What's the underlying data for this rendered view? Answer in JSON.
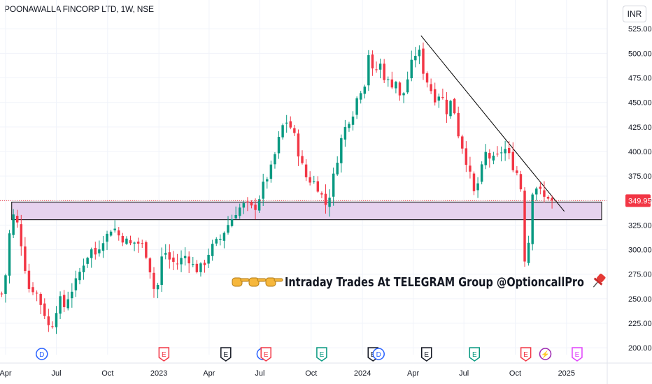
{
  "header": {
    "symbol_title": "POONAWALLA FINCORP LTD, 1W, NSE",
    "currency": "INR"
  },
  "price_tag": {
    "value": "349.95",
    "color": "#f23645"
  },
  "banner": {
    "text": "Intraday Trades At TELEGRAM Group @OptioncallPro",
    "pointer_icon": "pointing-hand-icon",
    "pin_icon": "pushpin-icon"
  },
  "colors": {
    "up": "#089981",
    "down": "#f23645",
    "zone_fill": "#e6d2ee",
    "grid": "#f0f3fa"
  },
  "event_markers": [
    {
      "label": "D",
      "date": "2022-06-05",
      "color": "#2962ff",
      "shape": "circle"
    },
    {
      "label": "E",
      "date": "2023-01-10",
      "color": "#f23645",
      "shape": "pentagon"
    },
    {
      "label": "E",
      "date": "2023-05-01",
      "color": "#131722",
      "shape": "pentagon"
    },
    {
      "label": "D",
      "date": "2023-07-06",
      "color": "#2962ff",
      "shape": "circle"
    },
    {
      "label": "E",
      "date": "2023-07-12",
      "color": "#f23645",
      "shape": "pentagon"
    },
    {
      "label": "E",
      "date": "2023-10-20",
      "color": "#089981",
      "shape": "pentagon"
    },
    {
      "label": "E",
      "date": "2024-01-20",
      "color": "#131722",
      "shape": "pentagon"
    },
    {
      "label": "D",
      "date": "2024-01-30",
      "color": "#2962ff",
      "shape": "circle"
    },
    {
      "label": "E",
      "date": "2024-04-25",
      "color": "#131722",
      "shape": "pentagon"
    },
    {
      "label": "E",
      "date": "2024-07-20",
      "color": "#089981",
      "shape": "pentagon"
    },
    {
      "label": "E",
      "date": "2024-10-20",
      "color": "#f23645",
      "shape": "pentagon"
    },
    {
      "label": "⚡",
      "date": "2024-11-24",
      "color": "#9c27b0",
      "shape": "circle"
    },
    {
      "label": "E",
      "date": "2025-01-20",
      "color": "#e040fb",
      "shape": "pentagon"
    }
  ],
  "chart_data": {
    "type": "candlestick",
    "title": "POONAWALLA FINCORP LTD, 1W, NSE",
    "interval": "1W",
    "currency": "INR",
    "ylim": [
      193,
      533
    ],
    "xlim": [
      "2022-03-22",
      "2025-03-15"
    ],
    "y_ticks": [
      "200.00",
      "225.00",
      "250.00",
      "275.00",
      "300.00",
      "325.00",
      "350.00",
      "375.00",
      "400.00",
      "425.00",
      "450.00",
      "475.00",
      "500.00",
      "525.00"
    ],
    "x_ticks": [
      {
        "label": "Apr",
        "date": "2022-04-01"
      },
      {
        "label": "Jul",
        "date": "2022-07-01"
      },
      {
        "label": "Oct",
        "date": "2022-10-01"
      },
      {
        "label": "2023",
        "date": "2023-01-01"
      },
      {
        "label": "Apr",
        "date": "2023-04-01"
      },
      {
        "label": "Jul",
        "date": "2023-07-01"
      },
      {
        "label": "Oct",
        "date": "2023-10-01"
      },
      {
        "label": "2024",
        "date": "2024-01-01"
      },
      {
        "label": "Apr",
        "date": "2024-04-01"
      },
      {
        "label": "Jul",
        "date": "2024-07-01"
      },
      {
        "label": "Oct",
        "date": "2024-10-01"
      },
      {
        "label": "2025",
        "date": "2025-01-01"
      }
    ],
    "close_path": [
      [
        "2022-03-25",
        255
      ],
      [
        "2022-04-03",
        280
      ],
      [
        "2022-04-10",
        330
      ],
      [
        "2022-04-17",
        336
      ],
      [
        "2022-04-25",
        320
      ],
      [
        "2022-05-01",
        300
      ],
      [
        "2022-05-08",
        275
      ],
      [
        "2022-05-15",
        255
      ],
      [
        "2022-05-22",
        262
      ],
      [
        "2022-06-01",
        248
      ],
      [
        "2022-06-10",
        235
      ],
      [
        "2022-06-17",
        222
      ],
      [
        "2022-06-24",
        225
      ],
      [
        "2022-07-01",
        240
      ],
      [
        "2022-07-08",
        248
      ],
      [
        "2022-07-15",
        242
      ],
      [
        "2022-07-25",
        256
      ],
      [
        "2022-08-01",
        262
      ],
      [
        "2022-08-08",
        270
      ],
      [
        "2022-08-15",
        282
      ],
      [
        "2022-08-22",
        290
      ],
      [
        "2022-09-01",
        300
      ],
      [
        "2022-09-10",
        295
      ],
      [
        "2022-09-20",
        310
      ],
      [
        "2022-10-01",
        315
      ],
      [
        "2022-10-10",
        325
      ],
      [
        "2022-10-20",
        315
      ],
      [
        "2022-11-01",
        310
      ],
      [
        "2022-11-10",
        305
      ],
      [
        "2022-11-20",
        308
      ],
      [
        "2022-12-01",
        305
      ],
      [
        "2022-12-10",
        295
      ],
      [
        "2022-12-20",
        270
      ],
      [
        "2022-12-27",
        248
      ],
      [
        "2023-01-03",
        285
      ],
      [
        "2023-01-10",
        300
      ],
      [
        "2023-01-20",
        290
      ],
      [
        "2023-02-01",
        285
      ],
      [
        "2023-02-10",
        290
      ],
      [
        "2023-02-20",
        295
      ],
      [
        "2023-03-01",
        285
      ],
      [
        "2023-03-10",
        280
      ],
      [
        "2023-03-20",
        282
      ],
      [
        "2023-04-01",
        298
      ],
      [
        "2023-04-10",
        305
      ],
      [
        "2023-04-20",
        310
      ],
      [
        "2023-05-01",
        322
      ],
      [
        "2023-05-10",
        330
      ],
      [
        "2023-05-20",
        340
      ],
      [
        "2023-06-01",
        345
      ],
      [
        "2023-06-10",
        345
      ],
      [
        "2023-06-20",
        340
      ],
      [
        "2023-07-01",
        355
      ],
      [
        "2023-07-10",
        370
      ],
      [
        "2023-07-20",
        380
      ],
      [
        "2023-08-01",
        405
      ],
      [
        "2023-08-10",
        425
      ],
      [
        "2023-08-20",
        432
      ],
      [
        "2023-09-01",
        415
      ],
      [
        "2023-09-10",
        395
      ],
      [
        "2023-09-20",
        375
      ],
      [
        "2023-10-01",
        370
      ],
      [
        "2023-10-10",
        368
      ],
      [
        "2023-10-20",
        355
      ],
      [
        "2023-10-28",
        345
      ],
      [
        "2023-11-05",
        360
      ],
      [
        "2023-11-15",
        388
      ],
      [
        "2023-11-25",
        415
      ],
      [
        "2023-12-05",
        430
      ],
      [
        "2023-12-15",
        440
      ],
      [
        "2023-12-25",
        460
      ],
      [
        "2024-01-05",
        470
      ],
      [
        "2024-01-12",
        500
      ],
      [
        "2024-01-20",
        478
      ],
      [
        "2024-02-01",
        490
      ],
      [
        "2024-02-10",
        475
      ],
      [
        "2024-02-20",
        468
      ],
      [
        "2024-03-01",
        472
      ],
      [
        "2024-03-10",
        450
      ],
      [
        "2024-03-20",
        470
      ],
      [
        "2024-04-01",
        495
      ],
      [
        "2024-04-10",
        505
      ],
      [
        "2024-04-20",
        480
      ],
      [
        "2024-05-01",
        465
      ],
      [
        "2024-05-10",
        455
      ],
      [
        "2024-05-20",
        460
      ],
      [
        "2024-06-01",
        440
      ],
      [
        "2024-06-10",
        455
      ],
      [
        "2024-06-20",
        420
      ],
      [
        "2024-07-01",
        400
      ],
      [
        "2024-07-10",
        380
      ],
      [
        "2024-07-20",
        355
      ],
      [
        "2024-08-01",
        380
      ],
      [
        "2024-08-10",
        400
      ],
      [
        "2024-08-20",
        390
      ],
      [
        "2024-09-01",
        395
      ],
      [
        "2024-09-10",
        405
      ],
      [
        "2024-09-20",
        395
      ],
      [
        "2024-10-01",
        380
      ],
      [
        "2024-10-10",
        375
      ],
      [
        "2024-10-17",
        290
      ],
      [
        "2024-10-24",
        300
      ],
      [
        "2024-10-31",
        360
      ],
      [
        "2024-11-10",
        365
      ],
      [
        "2024-11-20",
        352
      ],
      [
        "2024-12-01",
        355
      ],
      [
        "2024-12-08",
        349.95
      ]
    ]
  }
}
